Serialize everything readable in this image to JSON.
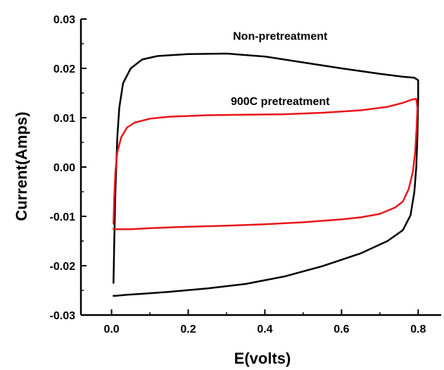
{
  "chart_data": {
    "type": "line",
    "xlabel": "E(volts)",
    "ylabel": "Current(Amps)",
    "xlim": [
      -0.08,
      0.86
    ],
    "ylim": [
      -0.03,
      0.03
    ],
    "x_ticks": [
      0.0,
      0.2,
      0.4,
      0.6,
      0.8
    ],
    "x_tick_labels": [
      "0.0",
      "0.2",
      "0.4",
      "0.6",
      "0.8"
    ],
    "y_ticks": [
      -0.03,
      -0.02,
      -0.01,
      0.0,
      0.01,
      0.02,
      0.03
    ],
    "y_tick_labels": [
      "-0.03",
      "-0.02",
      "-0.01",
      "0.00",
      "0.01",
      "0.02",
      "0.03"
    ],
    "grid": false,
    "legend": "none",
    "annotations": [
      {
        "text": "Non-pretreatment",
        "x": 0.44,
        "y": 0.0258
      },
      {
        "text": "900C pretreatment",
        "x": 0.44,
        "y": 0.0126
      }
    ],
    "series": [
      {
        "color": "#000000",
        "x": [
          0.005,
          0.007,
          0.01,
          0.015,
          0.02,
          0.03,
          0.05,
          0.08,
          0.12,
          0.2,
          0.3,
          0.4,
          0.5,
          0.6,
          0.7,
          0.76,
          0.79,
          0.8,
          0.8,
          0.798,
          0.795,
          0.79,
          0.78,
          0.76,
          0.72,
          0.65,
          0.55,
          0.45,
          0.35,
          0.25,
          0.15,
          0.08,
          0.04,
          0.01,
          0.005
        ],
        "y": [
          -0.0235,
          -0.015,
          -0.005,
          0.006,
          0.012,
          0.017,
          0.02,
          0.0218,
          0.0225,
          0.0229,
          0.023,
          0.0224,
          0.0212,
          0.02,
          0.0189,
          0.0183,
          0.0181,
          0.0176,
          0.014,
          0.006,
          0.0,
          -0.005,
          -0.0098,
          -0.0128,
          -0.015,
          -0.0175,
          -0.0201,
          -0.0222,
          -0.0237,
          -0.0246,
          -0.0253,
          -0.0257,
          -0.0259,
          -0.0261,
          -0.0261
        ]
      },
      {
        "color": "#e8141a",
        "x": [
          0.005,
          0.007,
          0.01,
          0.015,
          0.025,
          0.04,
          0.06,
          0.1,
          0.15,
          0.25,
          0.35,
          0.45,
          0.55,
          0.65,
          0.72,
          0.76,
          0.785,
          0.795,
          0.798,
          0.796,
          0.792,
          0.786,
          0.775,
          0.76,
          0.74,
          0.7,
          0.65,
          0.6,
          0.5,
          0.4,
          0.3,
          0.2,
          0.1,
          0.05,
          0.01,
          0.005
        ],
        "y": [
          -0.0115,
          -0.006,
          -0.001,
          0.003,
          0.006,
          0.008,
          0.009,
          0.0098,
          0.0102,
          0.0105,
          0.0106,
          0.0107,
          0.011,
          0.0115,
          0.0122,
          0.013,
          0.0137,
          0.0138,
          0.012,
          0.008,
          0.003,
          -0.001,
          -0.0045,
          -0.007,
          -0.0082,
          -0.0095,
          -0.0102,
          -0.0106,
          -0.0112,
          -0.0116,
          -0.0119,
          -0.0121,
          -0.0124,
          -0.0126,
          -0.0126,
          -0.0125
        ]
      }
    ]
  }
}
